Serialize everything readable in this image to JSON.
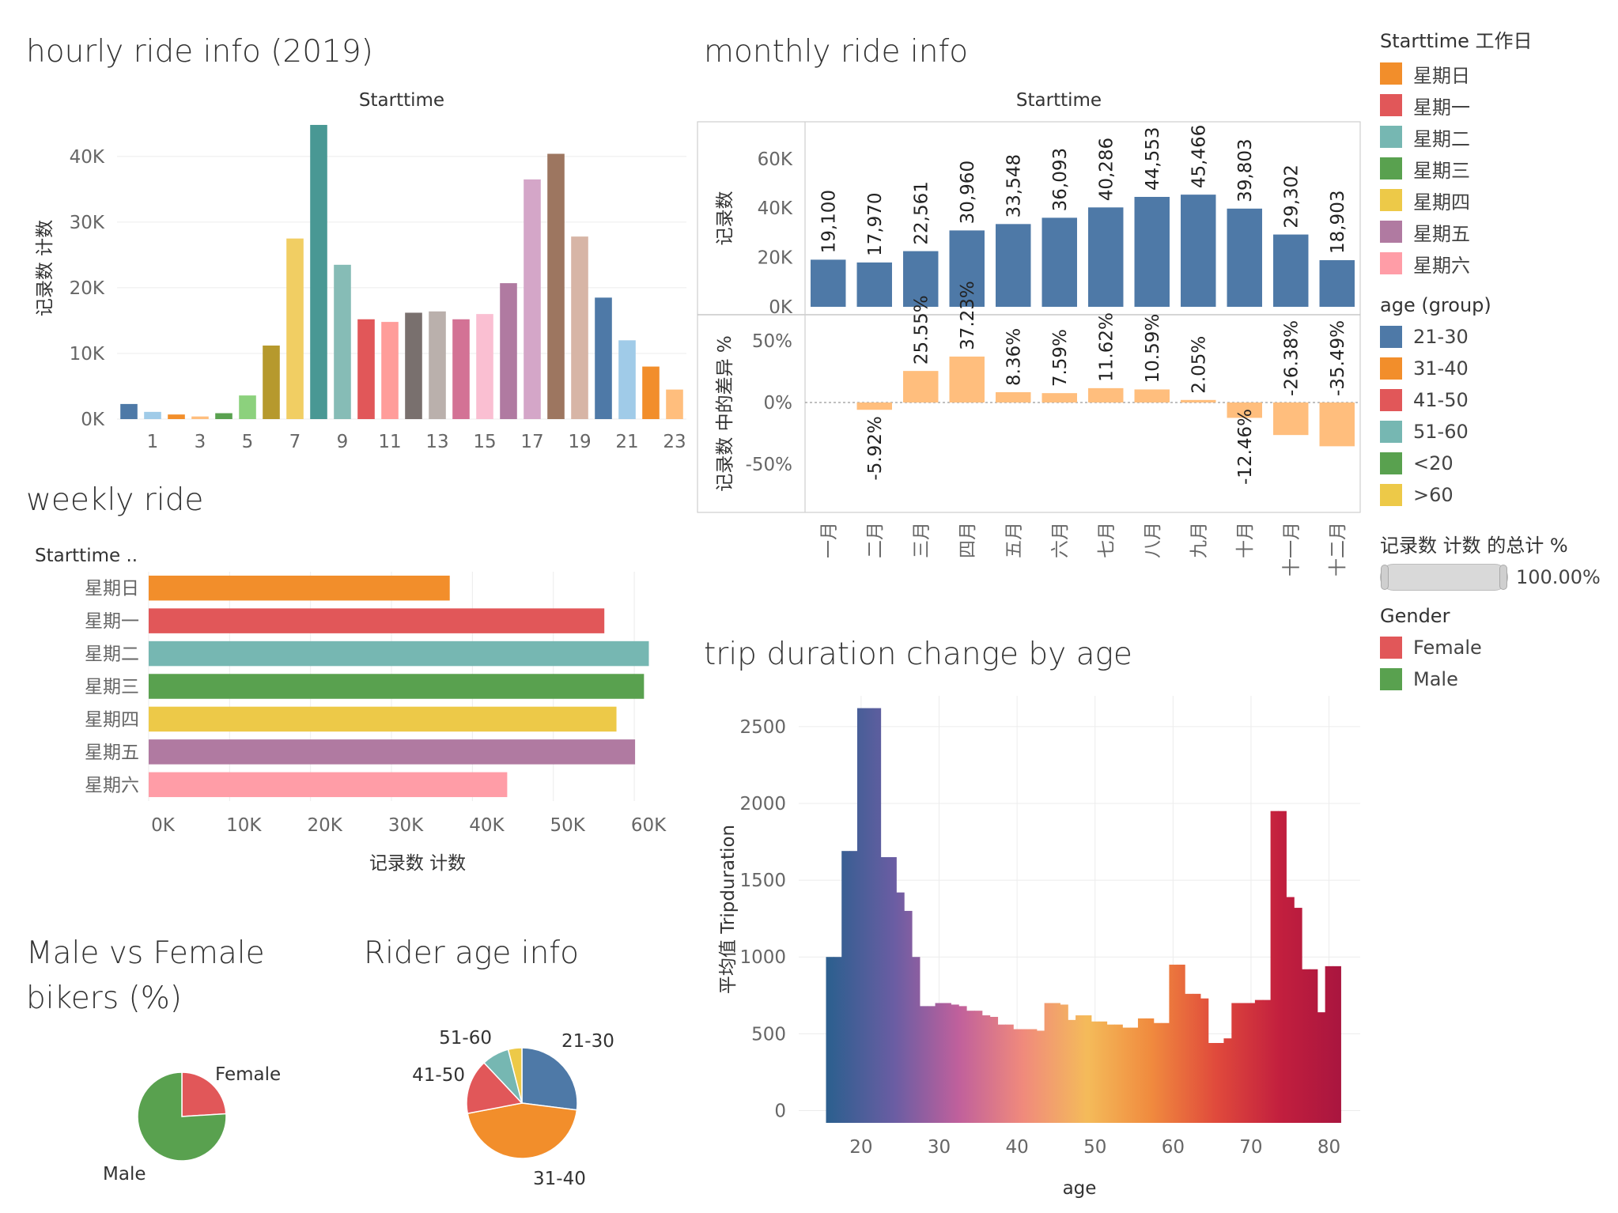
{
  "colors": {
    "steel_blue": "#4e79a7",
    "peach": "#ffbe7d",
    "gridline": "#ececec",
    "pie_male": "#59a14f",
    "pie_female": "#e15759",
    "age_21_30": "#4e79a7",
    "age_31_40": "#f28e2b",
    "age_41_50": "#e15759",
    "age_51_60": "#76b7b2",
    "age_lt20": "#59a14f",
    "age_gt60": "#edc948"
  },
  "titles": {
    "hourly": "hourly ride info (2019)",
    "monthly": "monthly ride info",
    "weekly": "weekly ride",
    "gender": "Male vs Female\nbikers (%)",
    "age_pie": "Rider age info",
    "duration": "trip duration change by age"
  },
  "legend": {
    "weekday_title": "Starttime 工作日",
    "weekday_items": [
      {
        "label": "星期日",
        "color": "#f28e2b"
      },
      {
        "label": "星期一",
        "color": "#e15759"
      },
      {
        "label": "星期二",
        "color": "#76b7b2"
      },
      {
        "label": "星期三",
        "color": "#59a14f"
      },
      {
        "label": "星期四",
        "color": "#edc948"
      },
      {
        "label": "星期五",
        "color": "#b07aa1"
      },
      {
        "label": "星期六",
        "color": "#ff9da7"
      }
    ],
    "age_title": "age (group)",
    "age_items": [
      {
        "label": "21-30",
        "color": "#4e79a7"
      },
      {
        "label": "31-40",
        "color": "#f28e2b"
      },
      {
        "label": "41-50",
        "color": "#e15759"
      },
      {
        "label": "51-60",
        "color": "#76b7b2"
      },
      {
        "label": "<20",
        "color": "#59a14f"
      },
      {
        "label": ">60",
        "color": "#edc948"
      }
    ],
    "pct_title": "记录数 计数 的总计 %",
    "pct_value": "100.00%",
    "gender_title": "Gender",
    "gender_items": [
      {
        "label": "Female",
        "color": "#e15759"
      },
      {
        "label": "Male",
        "color": "#59a14f"
      }
    ]
  },
  "chart_data": [
    {
      "id": "hourly",
      "type": "bar",
      "title": "hourly ride info (2019)",
      "header": "Starttime",
      "ylabel": "记录数 计数",
      "ylim": [
        0,
        46000
      ],
      "yticks": [
        0,
        10000,
        20000,
        30000,
        40000
      ],
      "ytick_labels": [
        "0K",
        "10K",
        "20K",
        "30K",
        "40K"
      ],
      "xtick_labels": [
        "1",
        "3",
        "5",
        "7",
        "9",
        "11",
        "13",
        "15",
        "17",
        "19",
        "21",
        "23"
      ],
      "categories": [
        0,
        1,
        2,
        3,
        4,
        5,
        6,
        7,
        8,
        9,
        10,
        11,
        12,
        13,
        14,
        15,
        16,
        17,
        18,
        19,
        20,
        21,
        22,
        23
      ],
      "values": [
        2300,
        1100,
        700,
        400,
        900,
        3600,
        11200,
        27500,
        44800,
        23500,
        15200,
        14800,
        16200,
        16400,
        15200,
        16000,
        20700,
        36500,
        40400,
        27800,
        18500,
        12000,
        8000,
        4500
      ],
      "colors": [
        "#4e79a7",
        "#a0cbe8",
        "#f28e2b",
        "#ffbe7d",
        "#59a14f",
        "#8cd17d",
        "#b6992d",
        "#f1ce63",
        "#499894",
        "#86bcb6",
        "#e15759",
        "#ff9d9a",
        "#79706e",
        "#bab0ac",
        "#d37295",
        "#fabfd2",
        "#b07aa1",
        "#d4a6c8",
        "#9d7660",
        "#d7b5a6",
        "#4e79a7",
        "#a0cbe8",
        "#f28e2b",
        "#ffbe7d"
      ]
    },
    {
      "id": "monthly_counts",
      "type": "bar",
      "title": "monthly ride info",
      "header": "Starttime",
      "ylabel": "记录数",
      "ylim": [
        0,
        75000
      ],
      "yticks": [
        0,
        20000,
        40000,
        60000
      ],
      "ytick_labels": [
        "0K",
        "20K",
        "40K",
        "60K"
      ],
      "categories": [
        "一月",
        "二月",
        "三月",
        "四月",
        "五月",
        "六月",
        "七月",
        "八月",
        "九月",
        "十月",
        "十一月",
        "十二月"
      ],
      "values": [
        19100,
        17970,
        22561,
        30960,
        33548,
        36093,
        40286,
        44553,
        45466,
        39803,
        29302,
        18903
      ],
      "labels": [
        "19,100",
        "17,970",
        "22,561",
        "30,960",
        "33,548",
        "36,093",
        "40,286",
        "44,553",
        "45,466",
        "39,803",
        "29,302",
        "18,903"
      ]
    },
    {
      "id": "monthly_diff",
      "type": "bar",
      "ylabel": "记录数 中的差异 %",
      "ylim": [
        -70,
        70
      ],
      "yticks": [
        -50,
        0,
        50
      ],
      "ytick_labels": [
        "-50%",
        "0%",
        "50%"
      ],
      "categories": [
        "一月",
        "二月",
        "三月",
        "四月",
        "五月",
        "六月",
        "七月",
        "八月",
        "九月",
        "十月",
        "十一月",
        "十二月"
      ],
      "values": [
        null,
        -5.92,
        25.55,
        37.23,
        8.36,
        7.59,
        11.62,
        10.59,
        2.05,
        -12.46,
        -26.38,
        -35.49
      ],
      "labels": [
        "",
        "-5.92%",
        "25.55%",
        "37.23%",
        "8.36%",
        "7.59%",
        "11.62%",
        "10.59%",
        "2.05%",
        "-12.46%",
        "-26.38%",
        "-35.49%"
      ]
    },
    {
      "id": "weekly",
      "type": "bar",
      "orientation": "horizontal",
      "title": "weekly ride",
      "header": "Starttime ..",
      "xlabel": "记录数 计数",
      "xlim": [
        0,
        64000
      ],
      "xticks": [
        0,
        10000,
        20000,
        30000,
        40000,
        50000,
        60000
      ],
      "xtick_labels": [
        "0K",
        "10K",
        "20K",
        "30K",
        "40K",
        "50K",
        "60K"
      ],
      "categories": [
        "星期日",
        "星期一",
        "星期二",
        "星期三",
        "星期四",
        "星期五",
        "星期六"
      ],
      "values": [
        37200,
        56300,
        61800,
        61200,
        57800,
        60100,
        44300
      ],
      "colors": [
        "#f28e2b",
        "#e15759",
        "#76b7b2",
        "#59a14f",
        "#edc948",
        "#b07aa1",
        "#ff9da7"
      ]
    },
    {
      "id": "gender",
      "type": "pie",
      "title": "Male vs Female bikers (%)",
      "slices": [
        {
          "label": "Female",
          "value": 24,
          "color": "#e15759"
        },
        {
          "label": "Male",
          "value": 76,
          "color": "#59a14f"
        }
      ]
    },
    {
      "id": "age_pie",
      "type": "pie",
      "title": "Rider age info",
      "slices": [
        {
          "label": "21-30",
          "value": 27,
          "color": "#4e79a7"
        },
        {
          "label": "31-40",
          "value": 45,
          "color": "#f28e2b"
        },
        {
          "label": "41-50",
          "value": 16,
          "color": "#e15759"
        },
        {
          "label": "51-60",
          "value": 8,
          "color": "#76b7b2"
        },
        {
          "label": ">60",
          "value": 4,
          "color": "#edc948"
        }
      ]
    },
    {
      "id": "duration",
      "type": "bar",
      "title": "trip duration change by age",
      "xlabel": "age",
      "ylabel": "平均值 Tripduration",
      "xlim": [
        12,
        84
      ],
      "ylim": [
        -80,
        2700
      ],
      "xticks": [
        20,
        30,
        40,
        50,
        60,
        70,
        80
      ],
      "yticks": [
        0,
        500,
        1000,
        1500,
        2000,
        2500
      ],
      "x": [
        16,
        17,
        18,
        19,
        20,
        21,
        22,
        23,
        24,
        25,
        26,
        27,
        28,
        29,
        30,
        31,
        32,
        33,
        34,
        35,
        36,
        37,
        38,
        39,
        40,
        41,
        42,
        43,
        44,
        45,
        46,
        47,
        48,
        49,
        50,
        51,
        52,
        53,
        54,
        55,
        56,
        57,
        58,
        59,
        60,
        61,
        62,
        63,
        64,
        65,
        66,
        67,
        68,
        69,
        70,
        71,
        72,
        73,
        74,
        75,
        76,
        77,
        78,
        79,
        80,
        81
      ],
      "values": [
        1000,
        1000,
        1690,
        1690,
        2620,
        2620,
        2620,
        1650,
        1650,
        1420,
        1300,
        1000,
        680,
        680,
        700,
        700,
        690,
        680,
        650,
        650,
        620,
        610,
        560,
        560,
        530,
        530,
        530,
        520,
        700,
        700,
        690,
        590,
        620,
        620,
        580,
        580,
        560,
        560,
        540,
        540,
        600,
        600,
        570,
        570,
        950,
        950,
        760,
        760,
        730,
        440,
        440,
        470,
        700,
        700,
        700,
        720,
        720,
        1950,
        1950,
        1390,
        1320,
        920,
        920,
        640,
        940,
        940
      ],
      "gradient_stops": [
        "#2e5f8f",
        "#6a5da3",
        "#c0609c",
        "#f08a7c",
        "#f4bb5a",
        "#f08a3e",
        "#e04a3c",
        "#c21f3e",
        "#a8153f"
      ]
    }
  ]
}
